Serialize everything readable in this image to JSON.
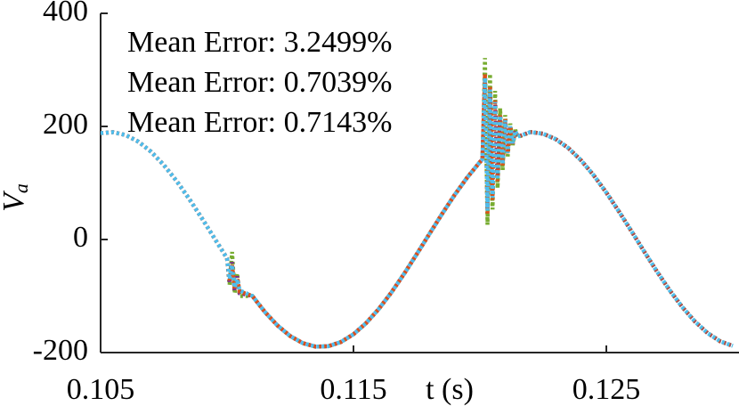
{
  "chart_data": {
    "type": "line",
    "xlabel": "t (s)",
    "ylabel": [
      "V",
      "a"
    ],
    "annotations": [
      {
        "text": "Mean Error: 3.2499%",
        "color": "#77ac30"
      },
      {
        "text": "Mean Error: 0.7039%",
        "color": "#7e2f8e"
      },
      {
        "text": "Mean Error: 0.7143%",
        "color": "#d95319"
      }
    ],
    "xlim": [
      0.105,
      0.13
    ],
    "ylim": [
      -200,
      400
    ],
    "xticks": [
      0.105,
      0.115,
      0.125
    ],
    "yticks": [
      -200,
      0,
      200,
      400
    ],
    "x": [
      0.105,
      0.1055,
      0.106,
      0.1065,
      0.107,
      0.1075,
      0.108,
      0.1085,
      0.109,
      0.1095,
      0.11,
      0.1101,
      0.1102,
      0.1103,
      0.1104,
      0.1105,
      0.111,
      0.1115,
      0.112,
      0.1125,
      0.113,
      0.1135,
      0.114,
      0.1145,
      0.115,
      0.1155,
      0.116,
      0.1165,
      0.117,
      0.1175,
      0.118,
      0.1185,
      0.119,
      0.1195,
      0.12,
      0.1201,
      0.1202,
      0.1203,
      0.1204,
      0.1205,
      0.1206,
      0.1207,
      0.1208,
      0.1209,
      0.121,
      0.1211,
      0.1212,
      0.1213,
      0.1214,
      0.1215,
      0.122,
      0.1225,
      0.123,
      0.1235,
      0.124,
      0.1245,
      0.125,
      0.1255,
      0.126,
      0.1265,
      0.127,
      0.1275,
      0.128,
      0.1285,
      0.129,
      0.1295,
      0.13
    ],
    "series": [
      {
        "color": "#77ac30",
        "values": [
          188.2,
          189.8,
          184.6,
          172.9,
          155.1,
          131.7,
          103.8,
          72.1,
          37.9,
          2.3,
          -33.3,
          -80,
          -22,
          -95,
          -60,
          -100,
          -99.8,
          -128.4,
          -152.3,
          -170.9,
          -183.4,
          -189.5,
          -188.8,
          -181.4,
          -167.6,
          -147.9,
          -122.9,
          -93.6,
          -60.9,
          -26.1,
          9.6,
          45.0,
          78.8,
          109.8,
          137,
          142,
          321,
          26,
          293,
          53,
          263,
          91,
          232,
          123,
          220,
          147,
          205,
          167,
          194,
          181,
          190.0,
          187.1,
          177.5,
          161.7,
          140.1,
          113.5,
          83.0,
          49.5,
          14.2,
          -21.5,
          -56.5,
          -89.5,
          -119.3,
          -144.9,
          -165.4,
          -180.0,
          -188.2
        ]
      },
      {
        "color": "#7e2f8e",
        "values": [
          188.2,
          189.8,
          184.6,
          172.9,
          155.1,
          131.7,
          103.8,
          72.1,
          37.9,
          2.3,
          -33.3,
          -75,
          -40,
          -90,
          -65,
          -95,
          -99.8,
          -128.4,
          -152.3,
          -170.9,
          -183.4,
          -189.5,
          -188.8,
          -181.4,
          -167.6,
          -147.9,
          -122.9,
          -93.6,
          -60.9,
          -26.1,
          9.6,
          45.0,
          78.8,
          109.8,
          137,
          142,
          279,
          56,
          260,
          78,
          239,
          109,
          217,
          135,
          209,
          154,
          199,
          171,
          192,
          182,
          190.0,
          187.1,
          177.5,
          161.7,
          140.1,
          113.5,
          83.0,
          49.5,
          14.2,
          -21.5,
          -56.5,
          -89.5,
          -119.3,
          -144.9,
          -165.4,
          -180.0,
          -188.2
        ]
      },
      {
        "color": "#d95319",
        "values": [
          188.2,
          189.8,
          184.6,
          172.9,
          155.1,
          131.7,
          103.8,
          72.1,
          37.9,
          2.3,
          -33.3,
          -72,
          -45,
          -88,
          -68,
          -92,
          -99.8,
          -128.4,
          -152.3,
          -170.9,
          -183.4,
          -189.5,
          -188.8,
          -181.4,
          -167.6,
          -147.9,
          -122.9,
          -93.6,
          -60.9,
          -26.1,
          9.6,
          45.0,
          78.8,
          109.8,
          137,
          142,
          293,
          46,
          271,
          70,
          247,
          103,
          222,
          131,
          213,
          152,
          201,
          169,
          192,
          182,
          190.0,
          187.1,
          177.5,
          161.7,
          140.1,
          113.5,
          83.0,
          49.5,
          14.2,
          -21.5,
          -56.5,
          -89.5,
          -119.3,
          -144.9,
          -165.4,
          -180.0,
          -188.2
        ]
      },
      {
        "color": "#4dbeee",
        "values": [
          188.2,
          189.8,
          184.6,
          172.9,
          155.1,
          131.7,
          103.8,
          72.1,
          37.9,
          2.3,
          -33.3,
          -70,
          -45,
          -85,
          -70,
          -90,
          -99.8,
          -128.4,
          -152.3,
          -170.9,
          -183.4,
          -189.5,
          -188.8,
          -181.4,
          -167.6,
          -147.9,
          -122.9,
          -93.6,
          -60.9,
          -26.1,
          9.6,
          45.0,
          78.8,
          109.8,
          137,
          142,
          286,
          51,
          265,
          74,
          243,
          106,
          219,
          133,
          211,
          153,
          200,
          170,
          192,
          182,
          190.0,
          187.1,
          177.5,
          161.7,
          140.1,
          113.5,
          83.0,
          49.5,
          14.2,
          -21.5,
          -56.5,
          -89.5,
          -119.3,
          -144.9,
          -165.4,
          -180.0,
          -188.2
        ]
      }
    ]
  }
}
